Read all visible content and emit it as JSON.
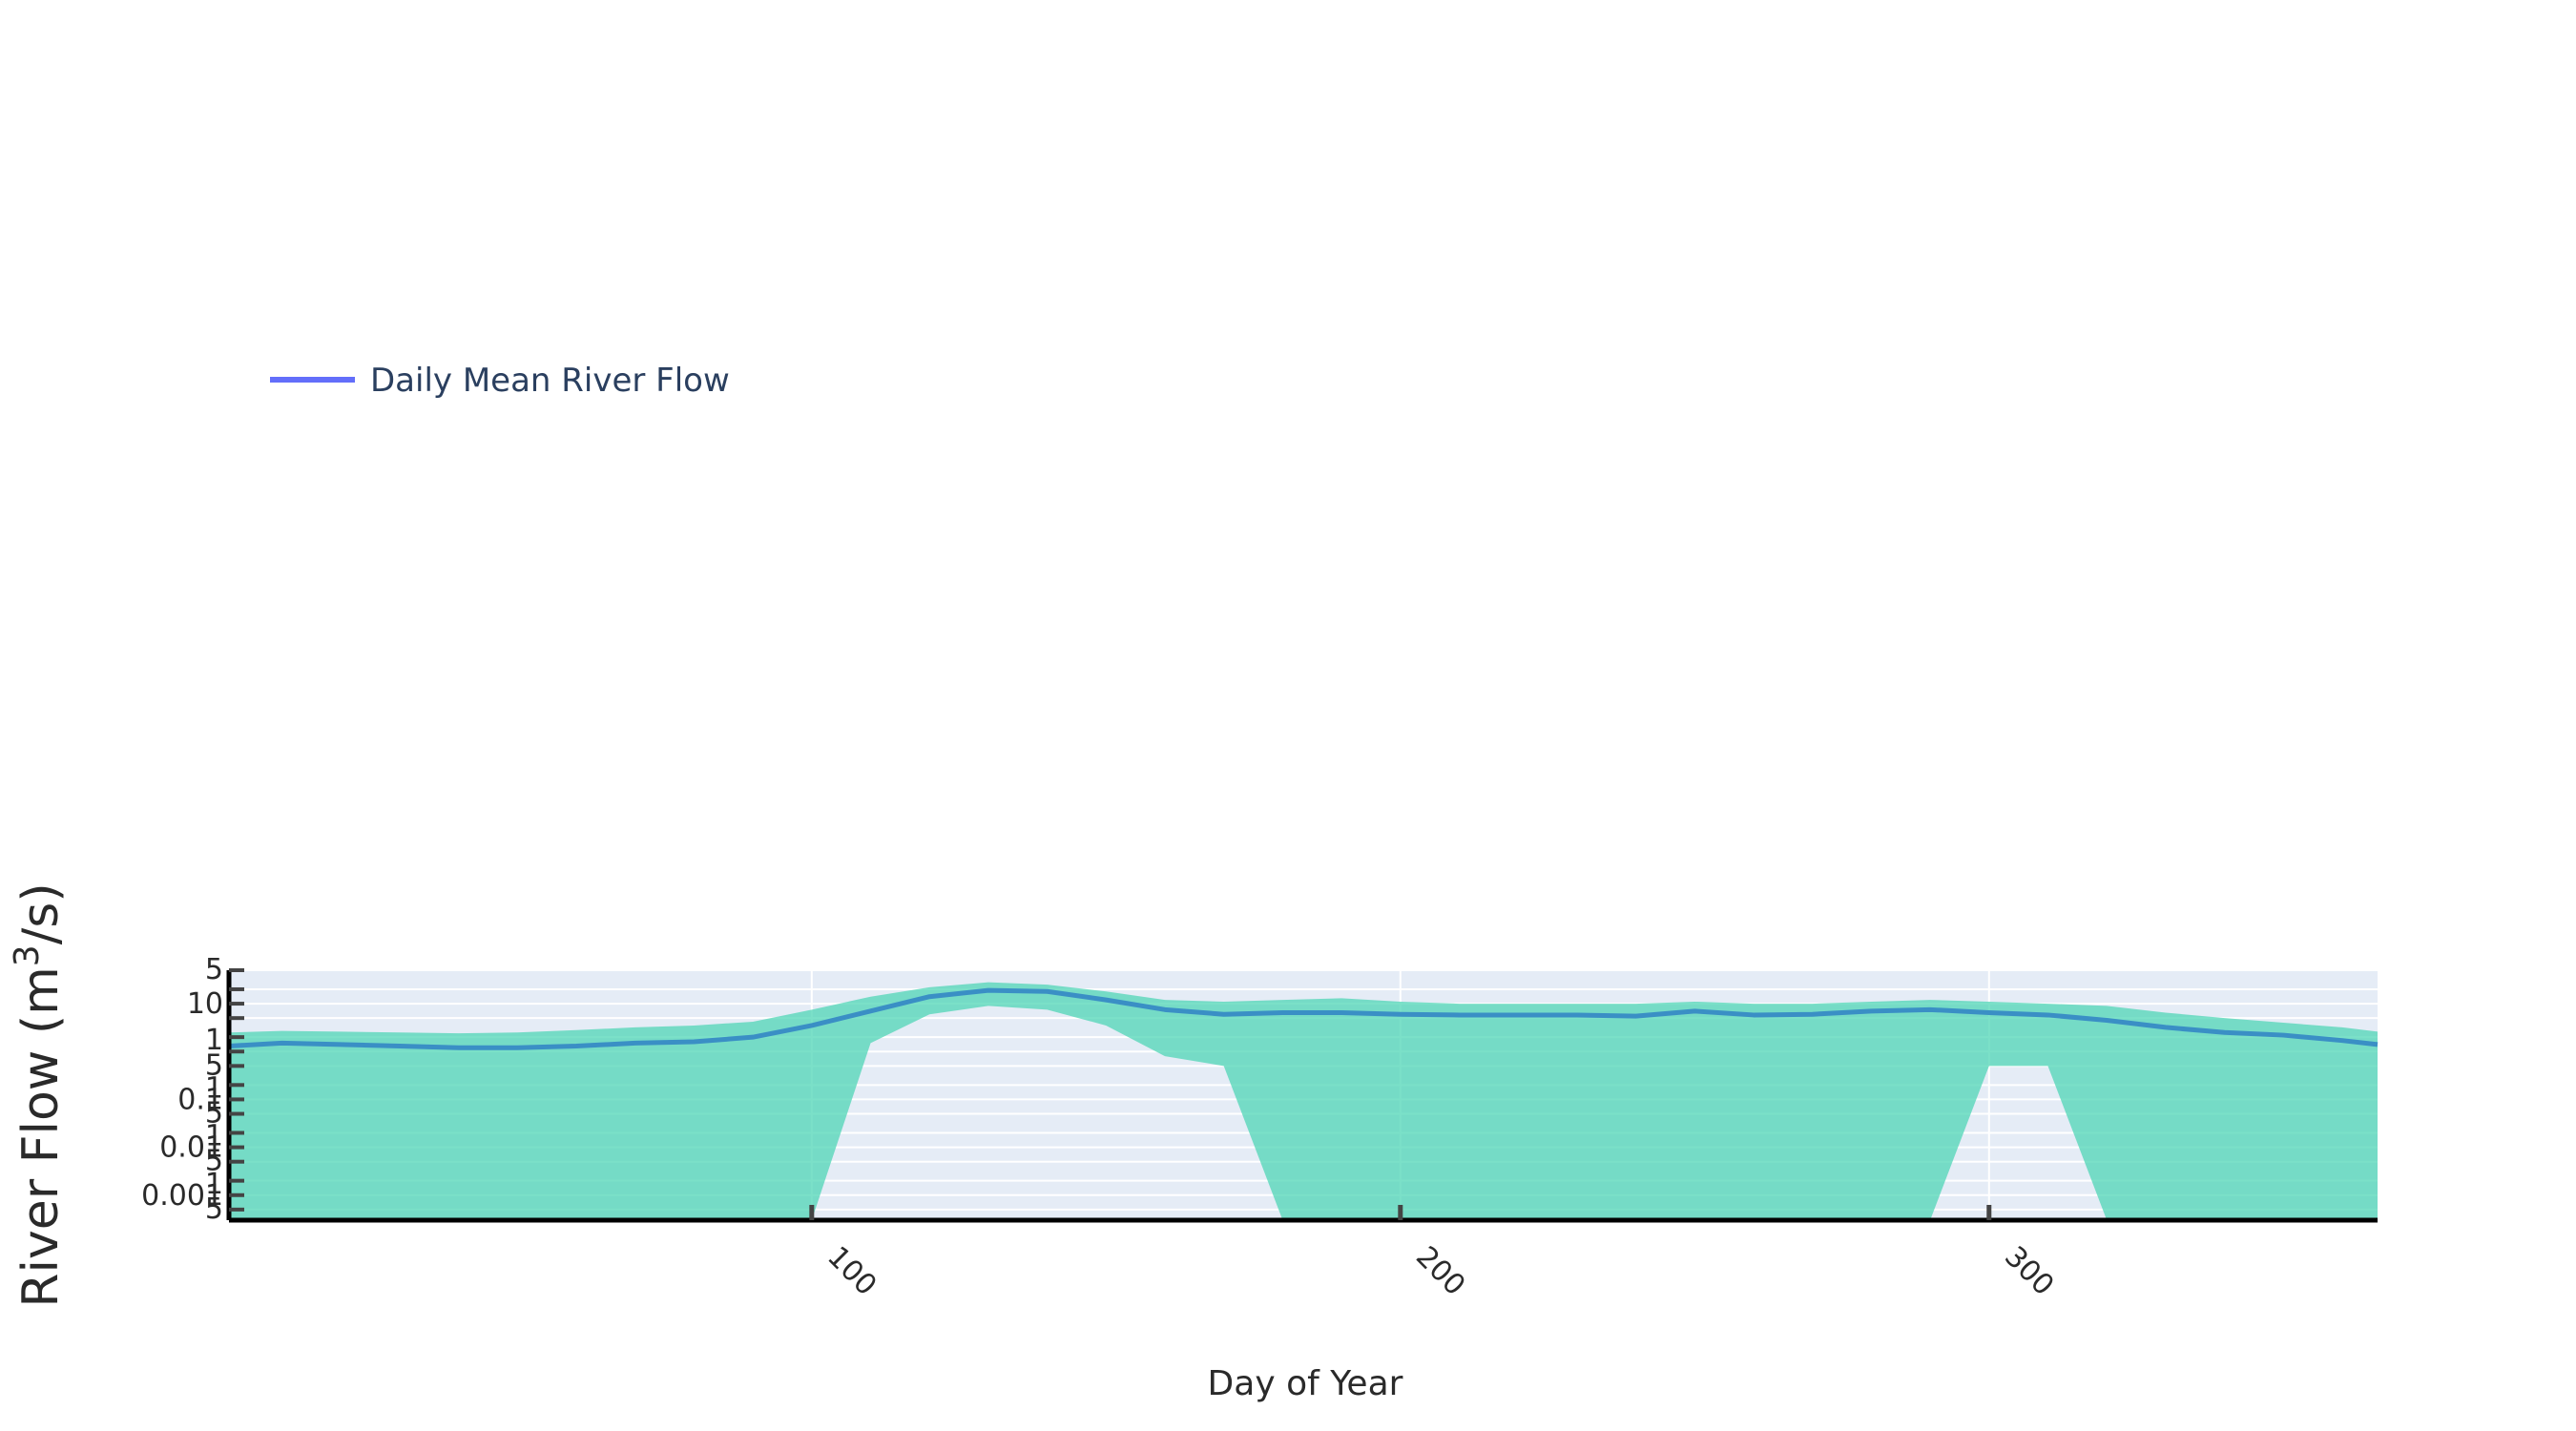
{
  "chart_data": {
    "type": "area",
    "xlabel": "Day of Year",
    "ylabel_base": "River Flow (m",
    "ylabel_sup": "3",
    "ylabel_tail": "/s)",
    "y_scale": "log",
    "xlim": [
      1,
      366
    ],
    "ylim": [
      0.0003,
      50
    ],
    "x_ticks": [
      100,
      200,
      300
    ],
    "x_tick_labels": [
      "100",
      "200",
      "300"
    ],
    "y_major_ticks": [
      10,
      0.1,
      0.01,
      0.001
    ],
    "y_major_labels": [
      "10",
      "0.1",
      "0.01",
      "0.001"
    ],
    "y_minor_labels": [
      "5",
      "5",
      "5",
      "5",
      "5"
    ],
    "y_one_labels": [
      "1",
      "1",
      "1",
      "1"
    ],
    "grid": true,
    "legend_position": "top-left",
    "colors": {
      "plot_bg": "#e5ecf6",
      "band_fill": "#4fd6b6",
      "mean_line": "#3a8fc5",
      "legend_line": "#636efa",
      "grid": "#ffffff",
      "axis": "#000000"
    },
    "series": [
      {
        "name": "Daily Mean River Flow",
        "x": [
          1,
          10,
          20,
          30,
          40,
          50,
          60,
          70,
          80,
          90,
          100,
          110,
          120,
          130,
          140,
          150,
          160,
          170,
          180,
          190,
          200,
          210,
          220,
          230,
          240,
          250,
          260,
          270,
          280,
          290,
          300,
          310,
          320,
          330,
          340,
          350,
          360,
          366
        ],
        "y": [
          1.3,
          1.5,
          1.4,
          1.3,
          1.2,
          1.2,
          1.3,
          1.5,
          1.6,
          2.0,
          3.5,
          7,
          14,
          19,
          18,
          12,
          7.5,
          6,
          6.5,
          6.5,
          6,
          5.8,
          5.8,
          5.8,
          5.5,
          7,
          5.8,
          6,
          7,
          7.5,
          6.5,
          5.8,
          4.5,
          3.2,
          2.5,
          2.2,
          1.7,
          1.4
        ]
      }
    ],
    "range_band": {
      "x": [
        1,
        10,
        20,
        30,
        40,
        50,
        60,
        70,
        80,
        90,
        100,
        110,
        120,
        130,
        140,
        150,
        160,
        170,
        180,
        190,
        200,
        210,
        220,
        230,
        240,
        250,
        260,
        270,
        280,
        290,
        300,
        310,
        320,
        330,
        340,
        350,
        360,
        366
      ],
      "upper": [
        2.5,
        2.7,
        2.6,
        2.5,
        2.4,
        2.5,
        2.8,
        3.2,
        3.5,
        4.2,
        7.5,
        14,
        22,
        28,
        25,
        18,
        12,
        11,
        12,
        13,
        11,
        10,
        10,
        10,
        10,
        11,
        10,
        10,
        11,
        12,
        11,
        10,
        9,
        6.5,
        5,
        4,
        3.2,
        2.6
      ],
      "lower": [
        0.0003,
        0.0003,
        0.0003,
        0.0003,
        0.0003,
        0.0003,
        0.0003,
        0.0003,
        0.0003,
        0.0003,
        0.0003,
        1.5,
        6,
        9,
        7.5,
        3.5,
        0.8,
        0.5,
        0.0003,
        0.0003,
        0.0003,
        0.0003,
        0.0003,
        0.0003,
        0.0003,
        0.0003,
        0.0003,
        0.0003,
        0.0003,
        0.0003,
        0.5,
        0.5,
        0.0003,
        0.0003,
        0.0003,
        0.0003,
        0.0003,
        0.0003
      ]
    }
  }
}
